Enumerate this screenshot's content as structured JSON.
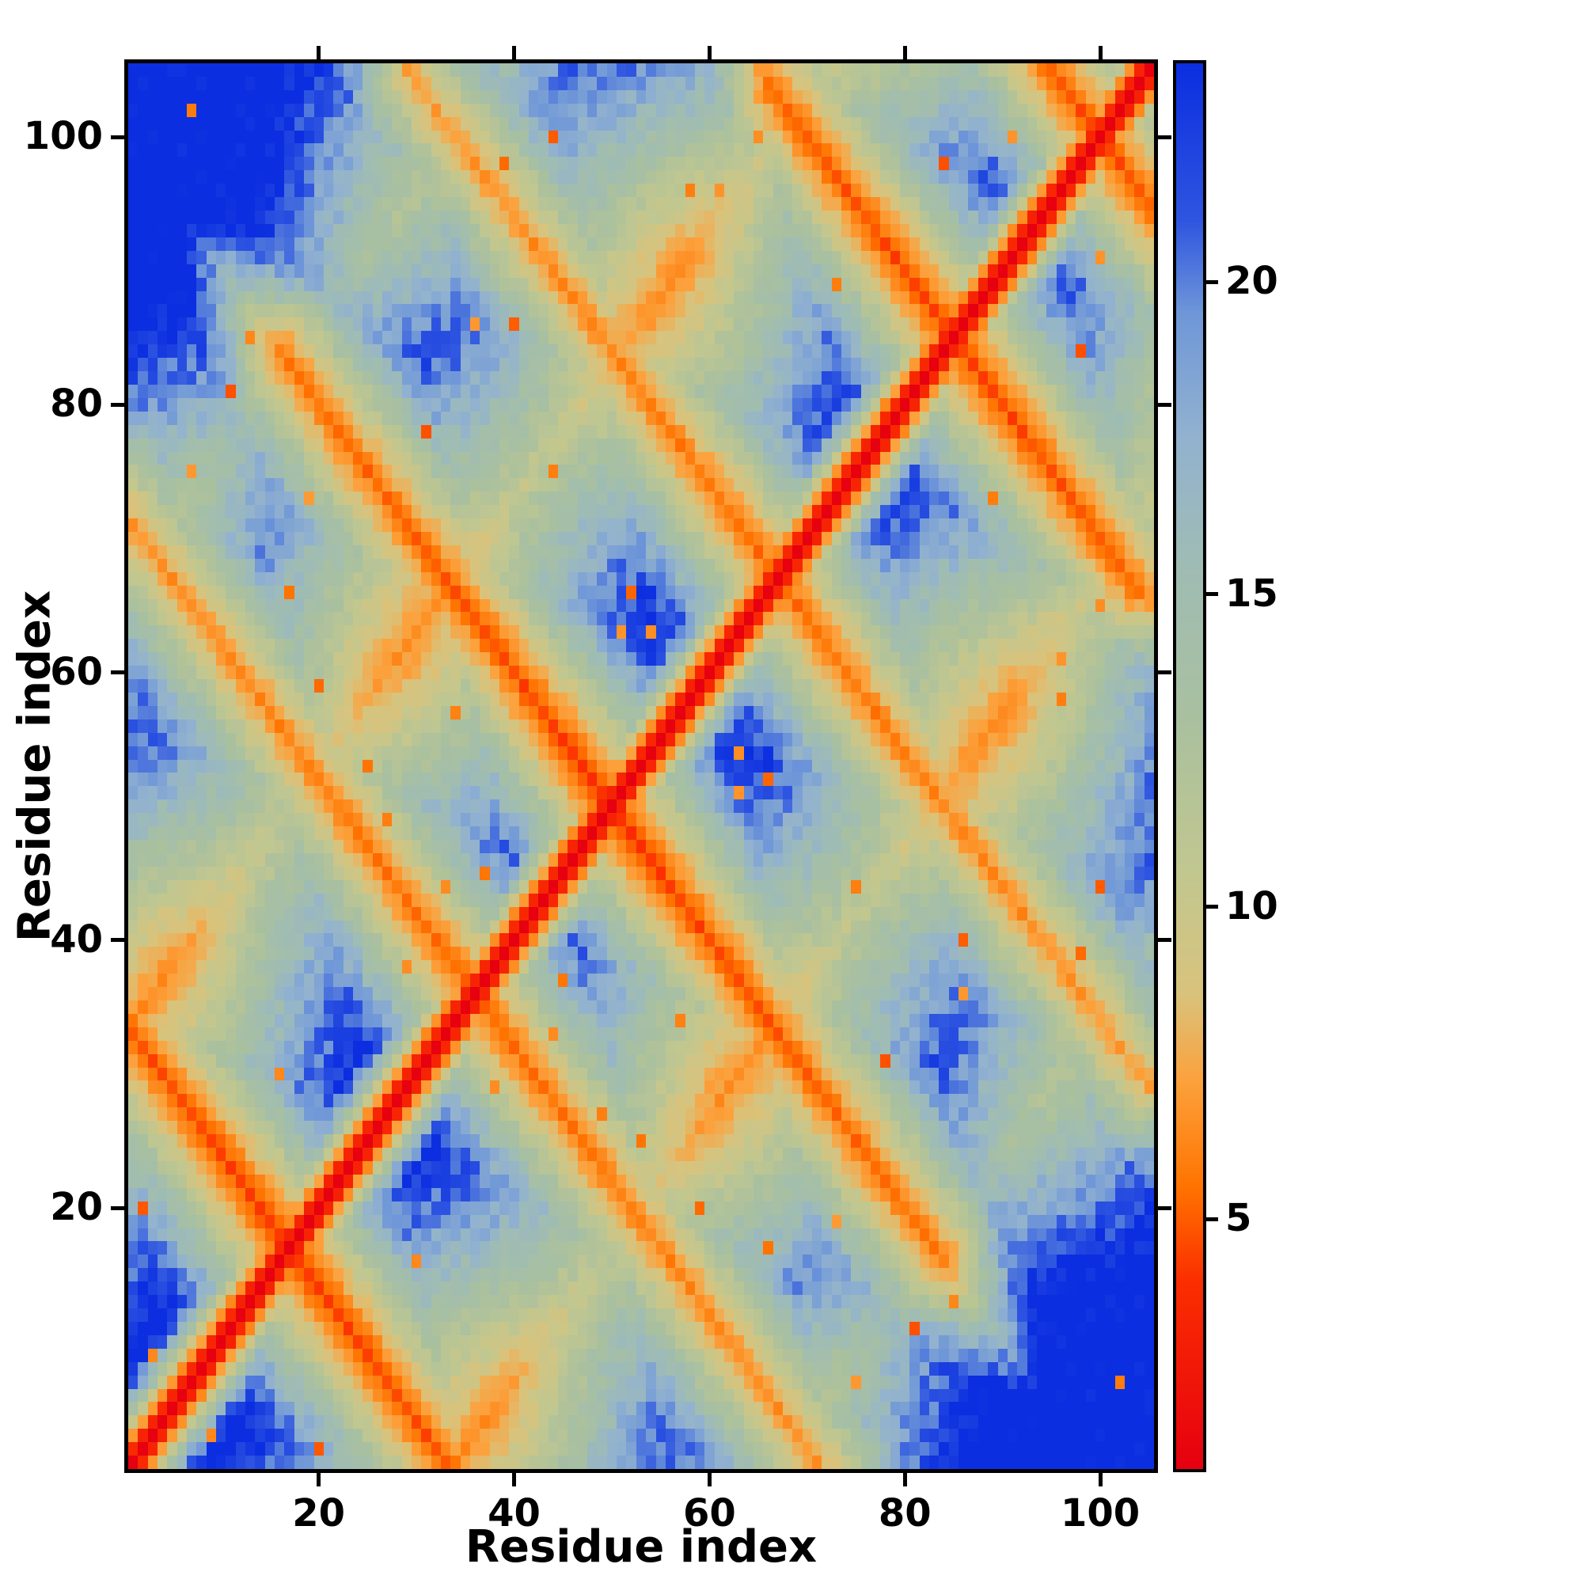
{
  "chart_data": {
    "type": "heatmap",
    "title": "",
    "xlabel": "Residue index",
    "ylabel": "Residue index",
    "n": 105,
    "x_range": [
      1,
      105
    ],
    "y_range": [
      1,
      105
    ],
    "x_ticks": [
      20,
      40,
      60,
      80,
      100
    ],
    "y_ticks": [
      20,
      40,
      60,
      80,
      100
    ],
    "grid": false,
    "legend": "none",
    "colorbar": {
      "position": "right",
      "vmin": 1,
      "vmax": 23.5,
      "ticks": [
        5,
        10,
        15,
        20
      ]
    },
    "colormap": [
      [
        1.0,
        "#e60010"
      ],
      [
        4.0,
        "#fb2e00"
      ],
      [
        5.5,
        "#ff7300"
      ],
      [
        7.2,
        "#fca13c"
      ],
      [
        8.6,
        "#d9c37c"
      ],
      [
        10.5,
        "#c2c78f"
      ],
      [
        13.0,
        "#a9c09f"
      ],
      [
        15.5,
        "#9fbcb4"
      ],
      [
        17.5,
        "#92b2cf"
      ],
      [
        19.5,
        "#6f97d8"
      ],
      [
        21.0,
        "#2e55e0"
      ],
      [
        23.5,
        "#0b2ee0"
      ]
    ],
    "description": "Pairwise residue-residue distance map of a 105-residue protein: red diagonal (sequence-adjacent residues), orange antidiagonal streaks crossing the diagonal near residues 17, 36, 50, 67, 85 and 100 (antiparallel hairpin contacts), sage/pale-blue mid-range bands, deep blue for distant pairs.",
    "synthesis": {
      "chain_slope": 3.4,
      "background": 25,
      "turns": [
        {
          "c": 17,
          "e": 17,
          "a": 4.0
        },
        {
          "c": 36,
          "e": 38,
          "a": 5.0
        },
        {
          "c": 50,
          "e": 34,
          "a": 4.0
        },
        {
          "c": 67,
          "e": 38,
          "a": 5.2
        },
        {
          "c": 85,
          "e": 19,
          "a": 4.2
        },
        {
          "c": 100,
          "e": 9,
          "a": 4.6
        }
      ],
      "turn_lateral": 1.15,
      "turn_fade": 0.05,
      "turn_overrun": 1.8,
      "parallels": [
        {
          "o": 33,
          "b": 8.6
        },
        {
          "o": 66,
          "b": 14.2
        }
      ],
      "parallel_rate": 0.55,
      "wave_amp": 2.2,
      "wave_freq": 0.12,
      "noise": 0.08,
      "speckle_p": 0.006,
      "seed": 7
    }
  }
}
